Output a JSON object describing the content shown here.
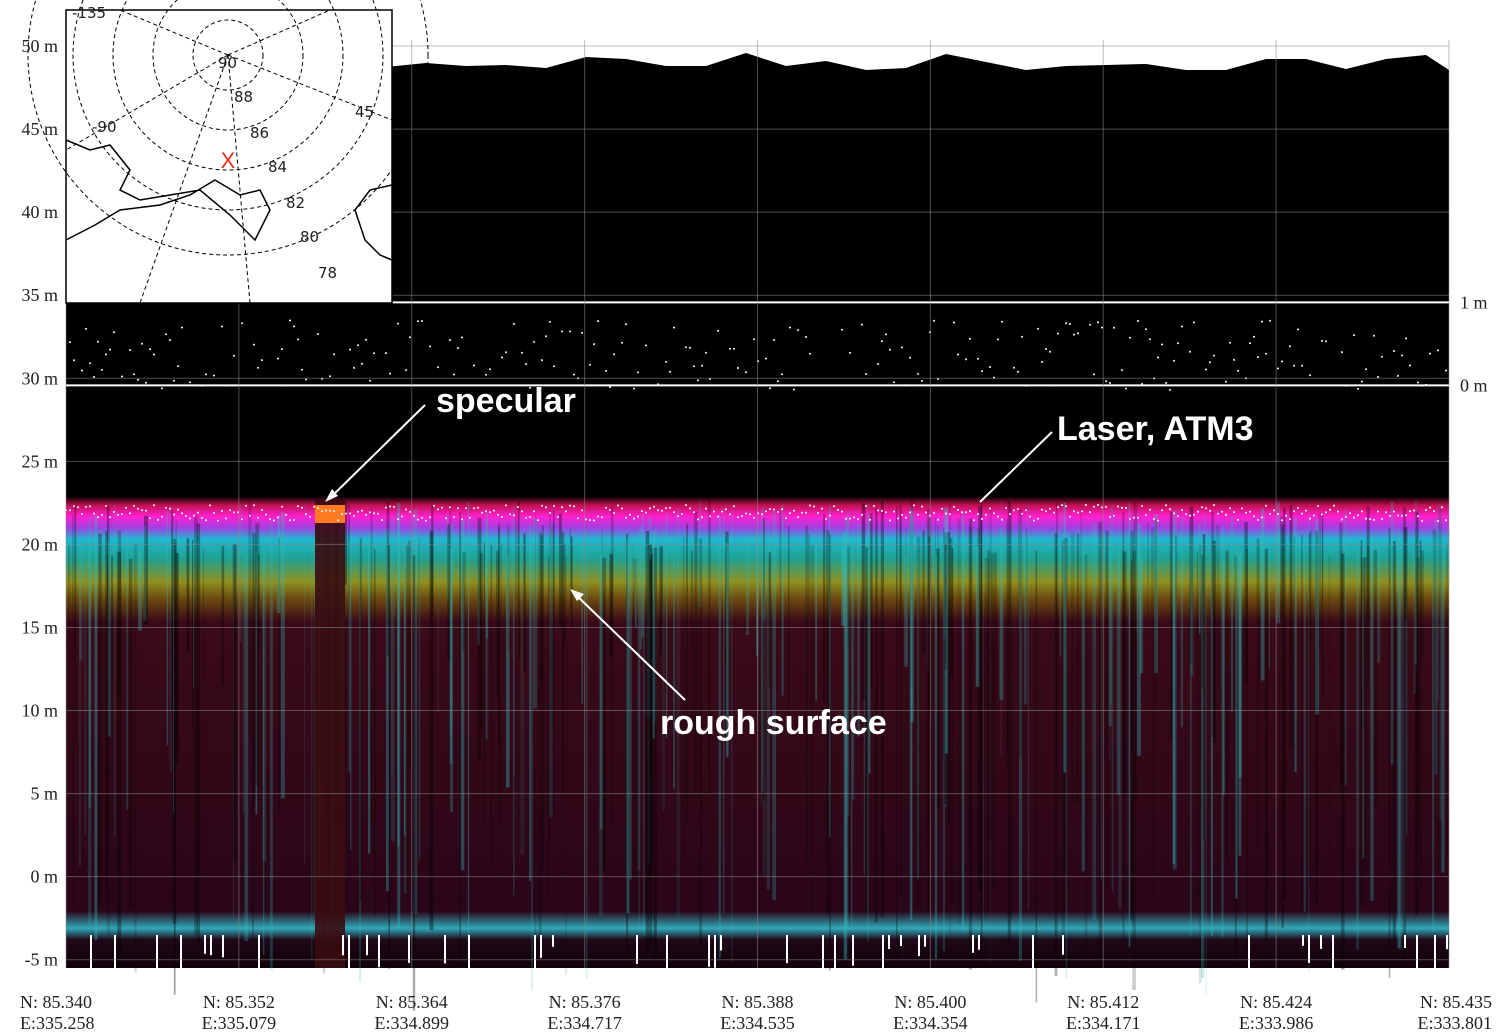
{
  "chart_data": {
    "type": "heatmap",
    "yticks": [
      {
        "value": 50,
        "label": "50 m"
      },
      {
        "value": 45,
        "label": "45 m"
      },
      {
        "value": 40,
        "label": "40 m"
      },
      {
        "value": 35,
        "label": "35 m"
      },
      {
        "value": 30,
        "label": "30 m"
      },
      {
        "value": 25,
        "label": "25 m"
      },
      {
        "value": 20,
        "label": "20 m"
      },
      {
        "value": 15,
        "label": "15 m"
      },
      {
        "value": 10,
        "label": "10 m"
      },
      {
        "value": 5,
        "label": "5 m"
      },
      {
        "value": 0,
        "label": "0 m"
      },
      {
        "value": -5,
        "label": "-5 m"
      }
    ],
    "ylim": [
      -5.5,
      51
    ],
    "y2ticks": [
      {
        "value": 1,
        "label": "1 m"
      },
      {
        "value": 0,
        "label": "0 m"
      }
    ],
    "y2lim": [
      -7.02,
      4.29
    ],
    "x_labels": [
      {
        "north": "N: 85.340",
        "east": "E:335.258"
      },
      {
        "north": "N: 85.352",
        "east": "E:335.079"
      },
      {
        "north": "N: 85.364",
        "east": "E:334.899"
      },
      {
        "north": "N: 85.376",
        "east": "E:334.717"
      },
      {
        "north": "N: 85.388",
        "east": "E:334.535"
      },
      {
        "north": "N: 85.400",
        "east": "E:334.354"
      },
      {
        "north": "N: 85.412",
        "east": "E:334.171"
      },
      {
        "north": "N: 85.424",
        "east": "E:333.986"
      },
      {
        "north": "N: 85.435",
        "east": "E:333.801"
      }
    ],
    "grid": true,
    "annotations": [
      "specular",
      "Laser, ATM3",
      "rough surface"
    ]
  },
  "inset": {
    "labels": [
      "-135",
      "90",
      "88",
      "86",
      "84",
      "82",
      "80",
      "78",
      "-90",
      "45"
    ],
    "marker": "X"
  }
}
